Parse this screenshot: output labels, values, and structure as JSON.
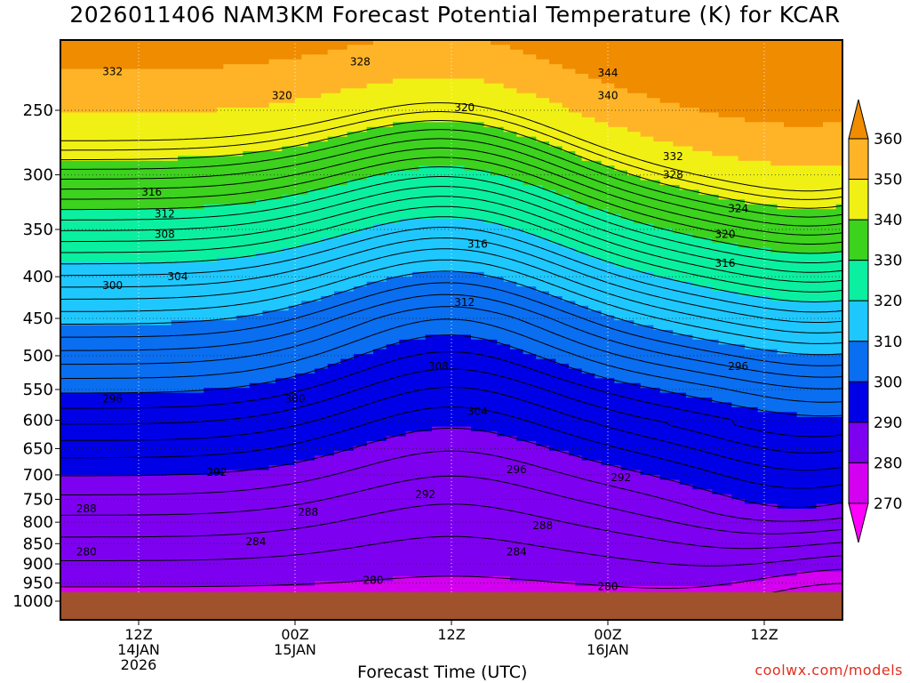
{
  "chart_data": {
    "type": "contour",
    "title": "2026011406 NAM3KM Forecast Potential Temperature (K) for KCAR",
    "xlabel": "Forecast Time (UTC)",
    "ylabel": "",
    "credit": "coolwx.com/models",
    "pressure_levels": [
      250,
      300,
      350,
      400,
      450,
      500,
      550,
      600,
      650,
      700,
      750,
      800,
      850,
      900,
      950,
      1000
    ],
    "pressure_tick_labels": [
      "250",
      "300",
      "350",
      "400",
      "450",
      "500",
      "550",
      "600",
      "650",
      "700",
      "750",
      "800",
      "850",
      "900",
      "950",
      "1000"
    ],
    "ylim": [
      200,
      1000
    ],
    "xlim_hours": [
      0,
      60
    ],
    "time_ticks": [
      {
        "hour": 6,
        "labels": [
          "12Z",
          "14JAN",
          "2026"
        ]
      },
      {
        "hour": 18,
        "labels": [
          "00Z",
          "15JAN"
        ]
      },
      {
        "hour": 30,
        "labels": [
          "12Z"
        ]
      },
      {
        "hour": 42,
        "labels": [
          "00Z",
          "16JAN"
        ]
      },
      {
        "hour": 54,
        "labels": [
          "12Z"
        ]
      }
    ],
    "colorbar": {
      "levels": [
        270,
        280,
        290,
        300,
        310,
        320,
        330,
        340,
        350,
        360
      ],
      "labels": [
        "270",
        "280",
        "290",
        "300",
        "310",
        "320",
        "330",
        "340",
        "350",
        "360"
      ],
      "colors": [
        "#ff00ff",
        "#d400f0",
        "#7e00f0",
        "#0000e6",
        "#0a6ef0",
        "#1ec8ff",
        "#0af0a0",
        "#3cd21e",
        "#f0f014",
        "#ffb428",
        "#f08c00"
      ],
      "extend": "both"
    },
    "contour_interval_K": 4,
    "thin_contours_K": [
      272,
      274,
      276,
      278,
      280,
      282,
      284,
      286,
      288,
      290,
      292,
      294,
      296,
      298,
      300,
      302,
      304,
      306,
      308,
      310,
      312,
      314,
      316,
      318,
      320,
      322,
      324,
      326,
      328,
      330,
      332,
      334,
      336,
      338,
      340,
      342,
      344
    ],
    "labeled_contours": [
      {
        "value": "328",
        "hour": 23,
        "p": 218
      },
      {
        "value": "332",
        "hour": 4,
        "p": 224
      },
      {
        "value": "344",
        "hour": 42,
        "p": 225
      },
      {
        "value": "340",
        "hour": 42,
        "p": 240
      },
      {
        "value": "320",
        "hour": 17,
        "p": 240
      },
      {
        "value": "320",
        "hour": 31,
        "p": 248
      },
      {
        "value": "332",
        "hour": 47,
        "p": 285
      },
      {
        "value": "328",
        "hour": 47,
        "p": 300
      },
      {
        "value": "316",
        "hour": 7,
        "p": 315
      },
      {
        "value": "324",
        "hour": 52,
        "p": 330
      },
      {
        "value": "312",
        "hour": 8,
        "p": 335
      },
      {
        "value": "308",
        "hour": 8,
        "p": 355
      },
      {
        "value": "320",
        "hour": 51,
        "p": 355
      },
      {
        "value": "316",
        "hour": 32,
        "p": 365
      },
      {
        "value": "316",
        "hour": 51,
        "p": 385
      },
      {
        "value": "304",
        "hour": 9,
        "p": 400
      },
      {
        "value": "300",
        "hour": 4,
        "p": 410
      },
      {
        "value": "312",
        "hour": 31,
        "p": 430
      },
      {
        "value": "308",
        "hour": 29,
        "p": 515
      },
      {
        "value": "296",
        "hour": 52,
        "p": 515
      },
      {
        "value": "296",
        "hour": 4,
        "p": 565
      },
      {
        "value": "300",
        "hour": 18,
        "p": 565
      },
      {
        "value": "304",
        "hour": 32,
        "p": 585
      },
      {
        "value": "296",
        "hour": 35,
        "p": 690
      },
      {
        "value": "292",
        "hour": 12,
        "p": 695
      },
      {
        "value": "292",
        "hour": 43,
        "p": 705
      },
      {
        "value": "292",
        "hour": 28,
        "p": 740
      },
      {
        "value": "288",
        "hour": 2,
        "p": 770
      },
      {
        "value": "288",
        "hour": 19,
        "p": 778
      },
      {
        "value": "288",
        "hour": 37,
        "p": 808
      },
      {
        "value": "284",
        "hour": 15,
        "p": 845
      },
      {
        "value": "284",
        "hour": 35,
        "p": 870
      },
      {
        "value": "280",
        "hour": 2,
        "p": 870
      },
      {
        "value": "280",
        "hour": 24,
        "p": 943
      },
      {
        "value": "280",
        "hour": 42,
        "p": 960
      }
    ]
  }
}
